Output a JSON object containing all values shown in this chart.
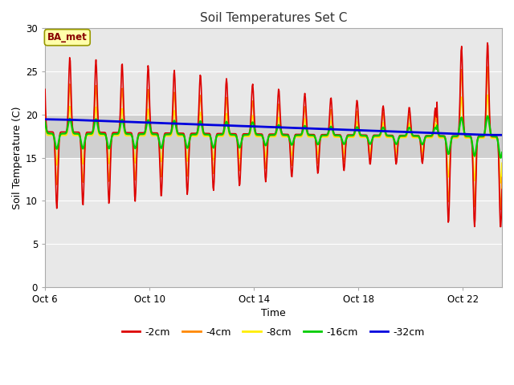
{
  "title": "Soil Temperatures Set C",
  "xlabel": "Time",
  "ylabel": "Soil Temperature (C)",
  "ylim": [
    0,
    30
  ],
  "xlim_days": [
    0,
    17.5
  ],
  "xtick_labels": [
    "Oct 6",
    "Oct 10",
    "Oct 14",
    "Oct 18",
    "Oct 22"
  ],
  "xtick_positions": [
    0,
    4,
    8,
    12,
    16
  ],
  "fig_bg_color": "#ffffff",
  "plot_bg_color": "#e8e8e8",
  "band_color": "#d0d0d0",
  "band_ymin": 15,
  "band_ymax": 20,
  "grid_color": "#ffffff",
  "line_colors": {
    "-2cm": "#dd0000",
    "-4cm": "#ff8800",
    "-8cm": "#ffee00",
    "-16cm": "#00cc00",
    "-32cm": "#0000dd"
  },
  "line_widths": {
    "-2cm": 1.2,
    "-4cm": 1.2,
    "-8cm": 1.2,
    "-16cm": 1.6,
    "-32cm": 2.0
  },
  "legend_label": "BA_met",
  "legend_entries": [
    "-2cm",
    "-4cm",
    "-8cm",
    "-16cm",
    "-32cm"
  ]
}
